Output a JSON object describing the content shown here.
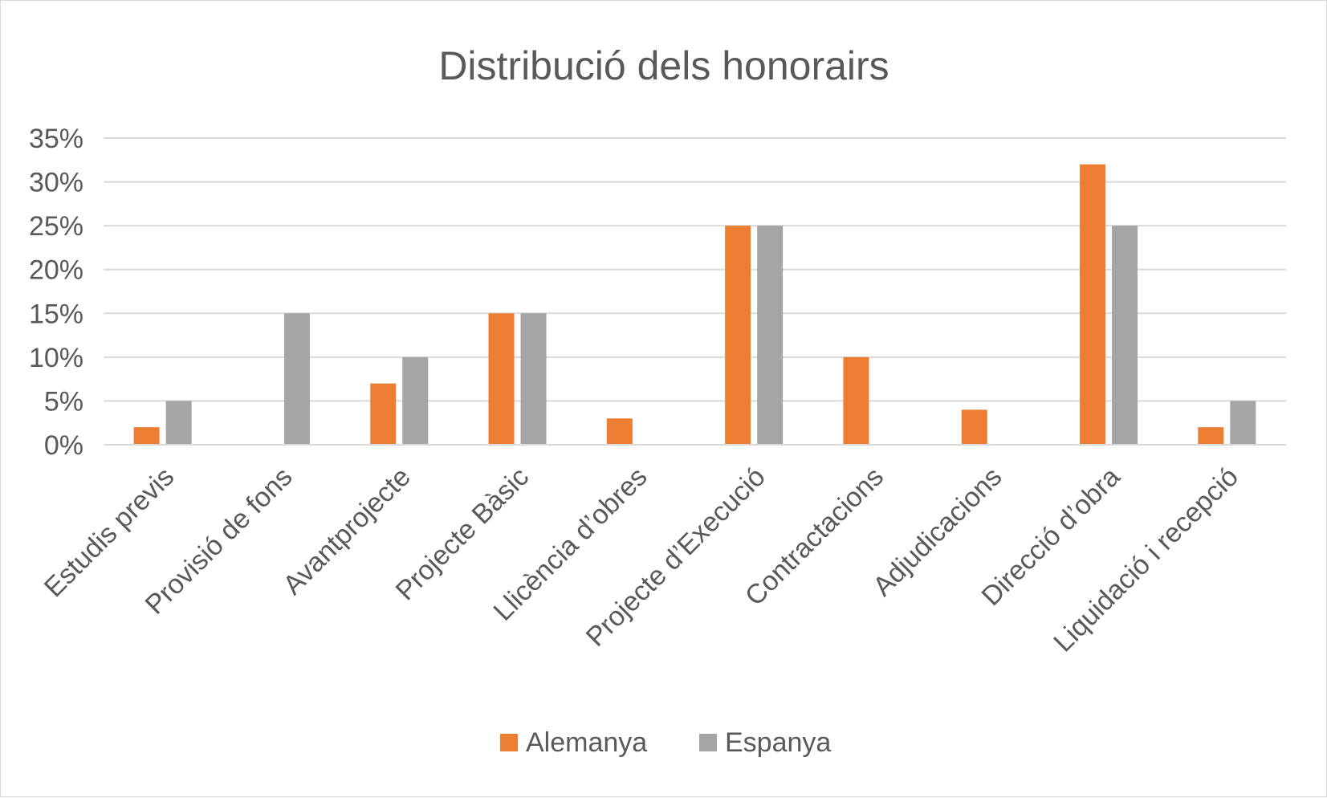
{
  "chart_data": {
    "type": "bar",
    "title": "Distribució dels honorairs",
    "categories": [
      "Estudis previs",
      "Provisió de fons",
      "Avantprojecte",
      "Projecte Bàsic",
      "Llicència d’obres",
      "Projecte d’Execució",
      "Contractacions",
      "Adjudicacions",
      "Direcció d’obra",
      "Liquidació i recepció"
    ],
    "series": [
      {
        "name": "Alemanya",
        "color": "#ed7d31",
        "values": [
          2,
          0,
          7,
          15,
          3,
          25,
          10,
          4,
          32,
          2
        ]
      },
      {
        "name": "Espanya",
        "color": "#a5a5a5",
        "values": [
          5,
          15,
          10,
          15,
          0,
          25,
          0,
          0,
          25,
          5
        ]
      }
    ],
    "ylim": [
      0,
      35
    ],
    "yticks": [
      0,
      5,
      10,
      15,
      20,
      25,
      30,
      35
    ],
    "ytick_suffix": "%",
    "grid": true,
    "legend_position": "bottom",
    "gridline_color": "#d9d9d9",
    "text_color": "#595959"
  }
}
